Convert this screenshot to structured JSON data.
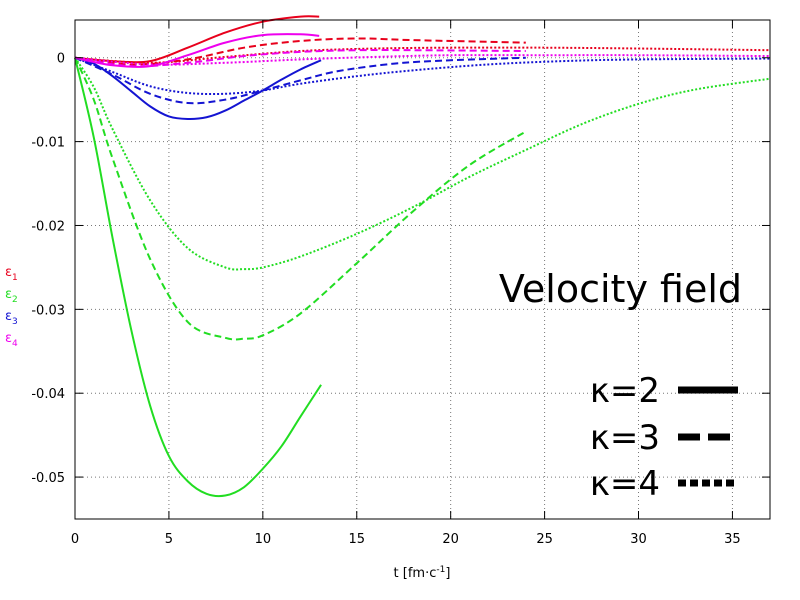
{
  "chart_data": {
    "type": "line",
    "title": "",
    "xlabel": {
      "base": "t [fm·c",
      "sup": "-1",
      "end": "]"
    },
    "ylabel_entries": [
      {
        "sym": "ε",
        "sub": "1",
        "color": "#e8001c"
      },
      {
        "sym": "ε",
        "sub": "2",
        "color": "#22dd22"
      },
      {
        "sym": "ε",
        "sub": "3",
        "color": "#1414d2"
      },
      {
        "sym": "ε",
        "sub": "4",
        "color": "#ee00ee"
      }
    ],
    "xlim": [
      0,
      37
    ],
    "ylim": [
      -0.055,
      0.0045
    ],
    "x_ticks": [
      0,
      5,
      10,
      15,
      20,
      25,
      30,
      35
    ],
    "x_tick_labels": [
      "0",
      "5",
      "10",
      "15",
      "20",
      "25",
      "30",
      "35"
    ],
    "y_ticks": [
      0,
      -0.01,
      -0.02,
      -0.03,
      -0.04,
      -0.05
    ],
    "y_tick_labels": [
      "0",
      "-0.01",
      "-0.02",
      "-0.03",
      "-0.04",
      "-0.05"
    ],
    "annotation": "Velocity field",
    "legend": {
      "placement": "bottom-right",
      "entries": [
        {
          "label": "κ=2",
          "style": "solid"
        },
        {
          "label": "κ=3",
          "style": "dashed"
        },
        {
          "label": "κ=4",
          "style": "dotted"
        }
      ]
    },
    "series": [
      {
        "component": "ε1",
        "kappa": 2,
        "style": "solid",
        "color": "#e8001c",
        "x": [
          0,
          2,
          4,
          6,
          8,
          10,
          12,
          13
        ],
        "y": [
          0,
          -0.0004,
          -0.0004,
          0.0012,
          0.003,
          0.0043,
          0.0049,
          0.0049
        ]
      },
      {
        "component": "ε1",
        "kappa": 3,
        "style": "dashed",
        "color": "#e8001c",
        "x": [
          0,
          3,
          6,
          9,
          12,
          15,
          18,
          24
        ],
        "y": [
          0,
          -0.0008,
          -0.0002,
          0.0012,
          0.002,
          0.0023,
          0.0021,
          0.0018
        ]
      },
      {
        "component": "ε1",
        "kappa": 4,
        "style": "dotted",
        "color": "#e8001c",
        "x": [
          0,
          4,
          8,
          12,
          16,
          20,
          25,
          30,
          37
        ],
        "y": [
          0,
          -0.0006,
          0.0001,
          0.0008,
          0.0011,
          0.0012,
          0.0012,
          0.0011,
          0.0009
        ]
      },
      {
        "component": "ε2",
        "kappa": 2,
        "style": "solid",
        "color": "#22dd22",
        "x": [
          0,
          1,
          2,
          3,
          4,
          5,
          6,
          7,
          8,
          9,
          10,
          11,
          12,
          13.1
        ],
        "y": [
          0,
          -0.0095,
          -0.0215,
          -0.0325,
          -0.0415,
          -0.0475,
          -0.0505,
          -0.052,
          -0.0522,
          -0.0512,
          -0.049,
          -0.0463,
          -0.0428,
          -0.039
        ]
      },
      {
        "component": "ε2",
        "kappa": 3,
        "style": "dashed",
        "color": "#22dd22",
        "x": [
          0,
          1,
          2,
          4,
          6,
          8,
          9,
          10,
          12,
          15,
          18,
          21,
          24
        ],
        "y": [
          0,
          -0.005,
          -0.012,
          -0.024,
          -0.0315,
          -0.0334,
          -0.0335,
          -0.0331,
          -0.0305,
          -0.0245,
          -0.0183,
          -0.0128,
          -0.0088
        ]
      },
      {
        "component": "ε2",
        "kappa": 4,
        "style": "dotted",
        "color": "#22dd22",
        "x": [
          0,
          1,
          2,
          4,
          6,
          8,
          9,
          10,
          12,
          15,
          18,
          21,
          24,
          27,
          30,
          33,
          37
        ],
        "y": [
          0,
          -0.0035,
          -0.0085,
          -0.017,
          -0.0227,
          -0.025,
          -0.0252,
          -0.025,
          -0.0237,
          -0.021,
          -0.0178,
          -0.0142,
          -0.011,
          -0.0079,
          -0.0055,
          -0.0038,
          -0.0025
        ]
      },
      {
        "component": "ε3",
        "kappa": 2,
        "style": "solid",
        "color": "#1414d2",
        "x": [
          0,
          1,
          2,
          3,
          4,
          5,
          6,
          7,
          8,
          9,
          10,
          11,
          12,
          13.1
        ],
        "y": [
          0,
          -0.0007,
          -0.0022,
          -0.004,
          -0.0058,
          -0.007,
          -0.0073,
          -0.0071,
          -0.0063,
          -0.0051,
          -0.0039,
          -0.0026,
          -0.0014,
          -0.0003
        ]
      },
      {
        "component": "ε3",
        "kappa": 3,
        "style": "dashed",
        "color": "#1414d2",
        "x": [
          0,
          2,
          4,
          6,
          8,
          10,
          12,
          14,
          17,
          20,
          24
        ],
        "y": [
          0,
          -0.002,
          -0.0043,
          -0.0054,
          -0.005,
          -0.0039,
          -0.0027,
          -0.0016,
          -0.0007,
          -0.0003,
          0.0
        ]
      },
      {
        "component": "ε3",
        "kappa": 4,
        "style": "dotted",
        "color": "#1414d2",
        "x": [
          0,
          2,
          4,
          6,
          8,
          10,
          12,
          15,
          18,
          22,
          26,
          30,
          37
        ],
        "y": [
          0,
          -0.0017,
          -0.0034,
          -0.0042,
          -0.0043,
          -0.0039,
          -0.0031,
          -0.0022,
          -0.0015,
          -0.0008,
          -0.0004,
          -0.0002,
          -0.0001
        ]
      },
      {
        "component": "ε4",
        "kappa": 2,
        "style": "solid",
        "color": "#ee00ee",
        "x": [
          0,
          2,
          4,
          6,
          8,
          10,
          12,
          13
        ],
        "y": [
          0,
          -0.0009,
          -0.001,
          0.0003,
          0.0018,
          0.0027,
          0.0028,
          0.0026
        ]
      },
      {
        "component": "ε4",
        "kappa": 3,
        "style": "dashed",
        "color": "#ee00ee",
        "x": [
          0,
          3,
          6,
          9,
          12,
          15,
          18,
          24
        ],
        "y": [
          0,
          -0.001,
          -0.0006,
          0.0002,
          0.0007,
          0.0009,
          0.0009,
          0.0008
        ]
      },
      {
        "component": "ε4",
        "kappa": 4,
        "style": "dotted",
        "color": "#ee00ee",
        "x": [
          0,
          4,
          8,
          12,
          16,
          20,
          25,
          30,
          37
        ],
        "y": [
          0,
          -0.0008,
          -0.0006,
          -0.0002,
          0.0001,
          0.0003,
          0.0003,
          0.0003,
          0.0002
        ]
      }
    ]
  }
}
